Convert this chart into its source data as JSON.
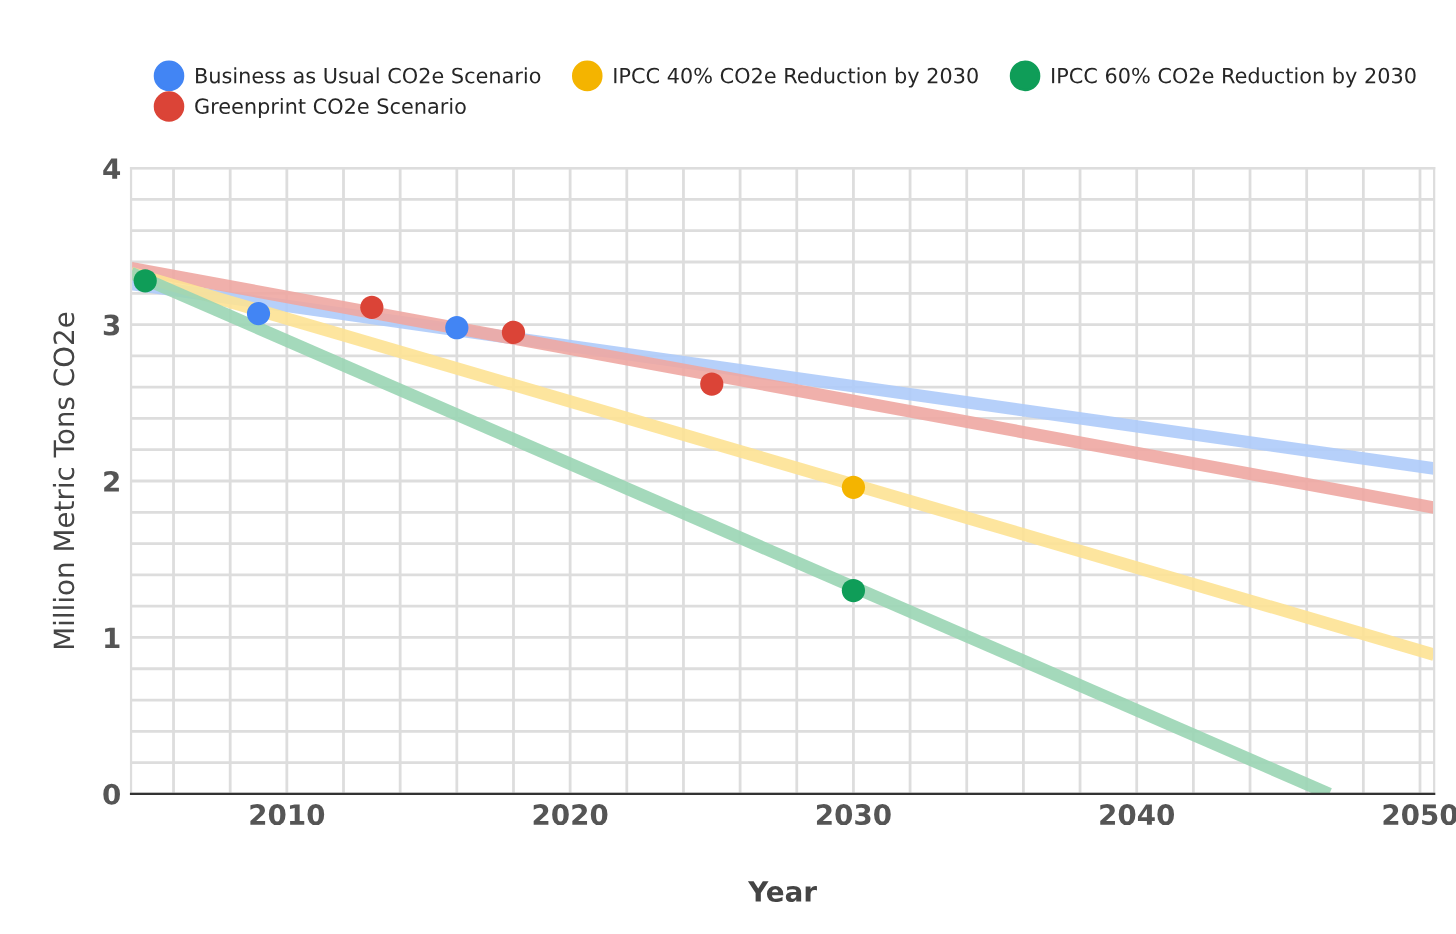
{
  "chart_data": {
    "type": "scatter",
    "xlabel": "Year",
    "ylabel": "Million Metric Tons CO2e",
    "xlim": [
      2004.5,
      2050.5
    ],
    "ylim": [
      0,
      4
    ],
    "xticks": [
      {
        "value": 2006,
        "label": null
      },
      {
        "value": 2008,
        "label": null
      },
      2010,
      {
        "value": 2012,
        "label": null
      },
      {
        "value": 2014,
        "label": null
      },
      {
        "value": 2016,
        "label": null
      },
      {
        "value": 2018,
        "label": null
      },
      2020,
      {
        "value": 2022,
        "label": null
      },
      {
        "value": 2024,
        "label": null
      },
      {
        "value": 2026,
        "label": null
      },
      {
        "value": 2028,
        "label": null
      },
      2030,
      {
        "value": 2032,
        "label": null
      },
      {
        "value": 2034,
        "label": null
      },
      {
        "value": 2036,
        "label": null
      },
      {
        "value": 2038,
        "label": null
      },
      2040,
      {
        "value": 2042,
        "label": null
      },
      {
        "value": 2044,
        "label": null
      },
      {
        "value": 2046,
        "label": null
      },
      {
        "value": 2048,
        "label": null
      },
      2050
    ],
    "yticks": [
      0,
      {
        "value": 0.2,
        "label": null
      },
      {
        "value": 0.4,
        "label": null
      },
      {
        "value": 0.6,
        "label": null
      },
      {
        "value": 0.8,
        "label": null
      },
      1,
      {
        "value": 1.2,
        "label": null
      },
      {
        "value": 1.4,
        "label": null
      },
      {
        "value": 1.6,
        "label": null
      },
      {
        "value": 1.8,
        "label": null
      },
      2,
      {
        "value": 2.2,
        "label": null
      },
      {
        "value": 2.4,
        "label": null
      },
      {
        "value": 2.6,
        "label": null
      },
      {
        "value": 2.8,
        "label": null
      },
      3,
      {
        "value": 3.2,
        "label": null
      },
      {
        "value": 3.4,
        "label": null
      },
      {
        "value": 3.6,
        "label": null
      },
      {
        "value": 3.8,
        "label": null
      },
      4
    ],
    "grid": true,
    "legend": "top",
    "series": [
      {
        "type": "line",
        "color": "#aecbfa",
        "x": [
          2004.5,
          2050.5
        ],
        "values": [
          3.26,
          2.08
        ]
      },
      {
        "type": "line",
        "color": "#eea7a2",
        "x": [
          2004.5,
          2050.5
        ],
        "values": [
          3.36,
          1.83
        ]
      },
      {
        "type": "line",
        "color": "#fde293",
        "x": [
          2004.5,
          2050.5
        ],
        "values": [
          3.33,
          0.89
        ]
      },
      {
        "type": "line",
        "color": "#9ad5b4",
        "x": [
          2004.5,
          2046.8
        ],
        "values": [
          3.33,
          0
        ]
      },
      {
        "name": "Business as Usual CO2e Scenario",
        "color": "#4285f4",
        "marker": "circle",
        "x": [
          2009,
          2016
        ],
        "values": [
          3.07,
          2.98
        ]
      },
      {
        "name": "Greenprint CO2e Scenario",
        "color": "#db4437",
        "marker": "circle",
        "x": [
          2013,
          2018,
          2025
        ],
        "values": [
          3.11,
          2.95,
          2.62
        ]
      },
      {
        "name": "IPCC 40% CO2e Reduction by 2030",
        "color": "#f4b400",
        "marker": "circle",
        "x": [
          2030
        ],
        "values": [
          1.96
        ]
      },
      {
        "name": "IPCC 60% CO2e Reduction by 2030",
        "color": "#0f9d58",
        "marker": "circle",
        "x": [
          2005,
          2030
        ],
        "values": [
          3.28,
          1.3
        ]
      }
    ]
  }
}
